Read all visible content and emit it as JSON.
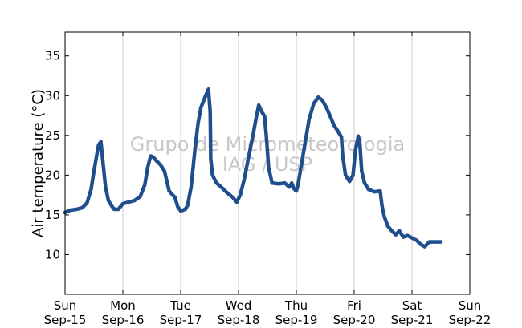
{
  "chart_data": {
    "type": "scatter",
    "title": "",
    "ylabel": "Air temperature (°C)",
    "xlabel": "",
    "watermark_lines": [
      "Grupo de Micrometeorologia",
      "IAG / USP"
    ],
    "xlim_days": [
      0,
      7
    ],
    "ylim": [
      5,
      38
    ],
    "yticks": [
      10,
      15,
      20,
      25,
      30,
      35
    ],
    "xticks": [
      {
        "day": "Sun",
        "date": "Sep-15"
      },
      {
        "day": "Mon",
        "date": "Sep-16"
      },
      {
        "day": "Tue",
        "date": "Sep-17"
      },
      {
        "day": "Wed",
        "date": "Sep-18"
      },
      {
        "day": "Thu",
        "date": "Sep-19"
      },
      {
        "day": "Fri",
        "date": "Sep-20"
      },
      {
        "day": "Sat",
        "date": "Sep-21"
      },
      {
        "day": "Sun",
        "date": "Sep-22"
      }
    ],
    "grid": "vertical",
    "marker_color": "#1f4e8c",
    "series": [
      {
        "values": [
          [
            0.0,
            15.3
          ],
          [
            0.1,
            15.6
          ],
          [
            0.2,
            15.7
          ],
          [
            0.3,
            15.9
          ],
          [
            0.38,
            16.5
          ],
          [
            0.45,
            18.2
          ],
          [
            0.5,
            20.5
          ],
          [
            0.55,
            22.6
          ],
          [
            0.58,
            23.8
          ],
          [
            0.62,
            24.2
          ],
          [
            0.65,
            22.0
          ],
          [
            0.7,
            18.5
          ],
          [
            0.75,
            16.8
          ],
          [
            0.8,
            16.2
          ],
          [
            0.85,
            15.7
          ],
          [
            0.92,
            15.7
          ],
          [
            1.0,
            16.4
          ],
          [
            1.1,
            16.6
          ],
          [
            1.2,
            16.8
          ],
          [
            1.3,
            17.3
          ],
          [
            1.38,
            18.8
          ],
          [
            1.43,
            21.0
          ],
          [
            1.48,
            22.4
          ],
          [
            1.52,
            22.3
          ],
          [
            1.58,
            21.8
          ],
          [
            1.65,
            21.3
          ],
          [
            1.72,
            20.5
          ],
          [
            1.8,
            18.0
          ],
          [
            1.85,
            17.6
          ],
          [
            1.9,
            17.2
          ],
          [
            1.95,
            16.0
          ],
          [
            2.0,
            15.5
          ],
          [
            2.08,
            15.7
          ],
          [
            2.12,
            16.2
          ],
          [
            2.18,
            18.5
          ],
          [
            2.25,
            23.5
          ],
          [
            2.3,
            26.5
          ],
          [
            2.35,
            28.5
          ],
          [
            2.42,
            29.8
          ],
          [
            2.48,
            30.8
          ],
          [
            2.51,
            28.0
          ],
          [
            2.52,
            22.0
          ],
          [
            2.55,
            20.0
          ],
          [
            2.62,
            19.0
          ],
          [
            2.7,
            18.5
          ],
          [
            2.8,
            17.8
          ],
          [
            2.9,
            17.2
          ],
          [
            2.97,
            16.6
          ],
          [
            3.03,
            17.5
          ],
          [
            3.1,
            19.5
          ],
          [
            3.18,
            22.5
          ],
          [
            3.25,
            25.0
          ],
          [
            3.3,
            27.0
          ],
          [
            3.35,
            28.8
          ],
          [
            3.4,
            28.0
          ],
          [
            3.45,
            27.4
          ],
          [
            3.48,
            25.0
          ],
          [
            3.52,
            21.0
          ],
          [
            3.58,
            19.0
          ],
          [
            3.7,
            18.9
          ],
          [
            3.8,
            19.0
          ],
          [
            3.88,
            18.5
          ],
          [
            3.92,
            19.0
          ],
          [
            3.96,
            18.3
          ],
          [
            4.0,
            18.0
          ],
          [
            4.03,
            18.8
          ],
          [
            4.08,
            21.0
          ],
          [
            4.15,
            24.0
          ],
          [
            4.22,
            27.0
          ],
          [
            4.3,
            29.0
          ],
          [
            4.38,
            29.8
          ],
          [
            4.45,
            29.4
          ],
          [
            4.52,
            28.5
          ],
          [
            4.58,
            27.5
          ],
          [
            4.65,
            26.3
          ],
          [
            4.72,
            25.5
          ],
          [
            4.78,
            24.8
          ],
          [
            4.8,
            22.5
          ],
          [
            4.85,
            20.0
          ],
          [
            4.92,
            19.2
          ],
          [
            4.98,
            20.0
          ],
          [
            5.02,
            23.0
          ],
          [
            5.07,
            24.9
          ],
          [
            5.1,
            23.8
          ],
          [
            5.13,
            20.5
          ],
          [
            5.18,
            19.0
          ],
          [
            5.25,
            18.2
          ],
          [
            5.35,
            17.9
          ],
          [
            5.45,
            18.0
          ],
          [
            5.48,
            16.2
          ],
          [
            5.52,
            14.8
          ],
          [
            5.58,
            13.6
          ],
          [
            5.65,
            13.0
          ],
          [
            5.72,
            12.5
          ],
          [
            5.78,
            13.0
          ],
          [
            5.85,
            12.2
          ],
          [
            5.92,
            12.4
          ],
          [
            6.0,
            12.1
          ],
          [
            6.08,
            11.8
          ],
          [
            6.15,
            11.3
          ],
          [
            6.22,
            11.0
          ],
          [
            6.3,
            11.6
          ],
          [
            6.38,
            11.6
          ],
          [
            6.45,
            11.6
          ],
          [
            6.5,
            11.6
          ]
        ]
      }
    ]
  }
}
